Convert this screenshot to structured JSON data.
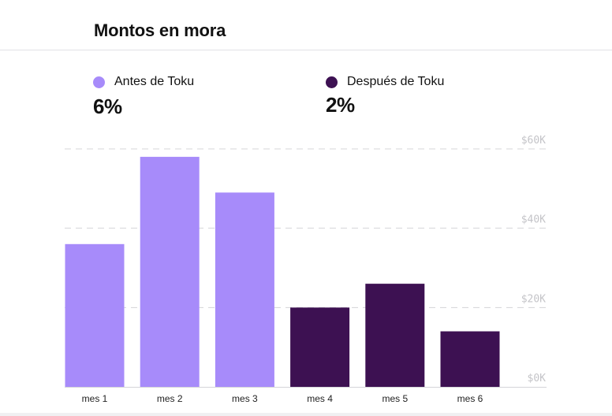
{
  "title": "Montos en mora",
  "legend": [
    {
      "label": "Antes de Toku",
      "value": "6%",
      "color": "#a78bfa"
    },
    {
      "label": "Después de Toku",
      "value": "2%",
      "color": "#3d1152"
    }
  ],
  "colors": {
    "grid": "#d4d4d8",
    "axis_text": "#c4c4c8",
    "baseline": "#d4d4d8"
  },
  "chart_data": {
    "type": "bar",
    "categories": [
      "mes 1",
      "mes 2",
      "mes 3",
      "mes 4",
      "mes 5",
      "mes 6"
    ],
    "values": [
      36,
      58,
      49,
      20,
      26,
      14
    ],
    "bar_groups": [
      "Antes de Toku",
      "Antes de Toku",
      "Antes de Toku",
      "Después de Toku",
      "Después de Toku",
      "Después de Toku"
    ],
    "ylim": [
      0,
      60
    ],
    "ytick_values": [
      0,
      20,
      40,
      60
    ],
    "ytick_labels": [
      "$0K",
      "$20K",
      "$40K",
      "$60K"
    ],
    "grid": true,
    "legend_position": "top"
  }
}
